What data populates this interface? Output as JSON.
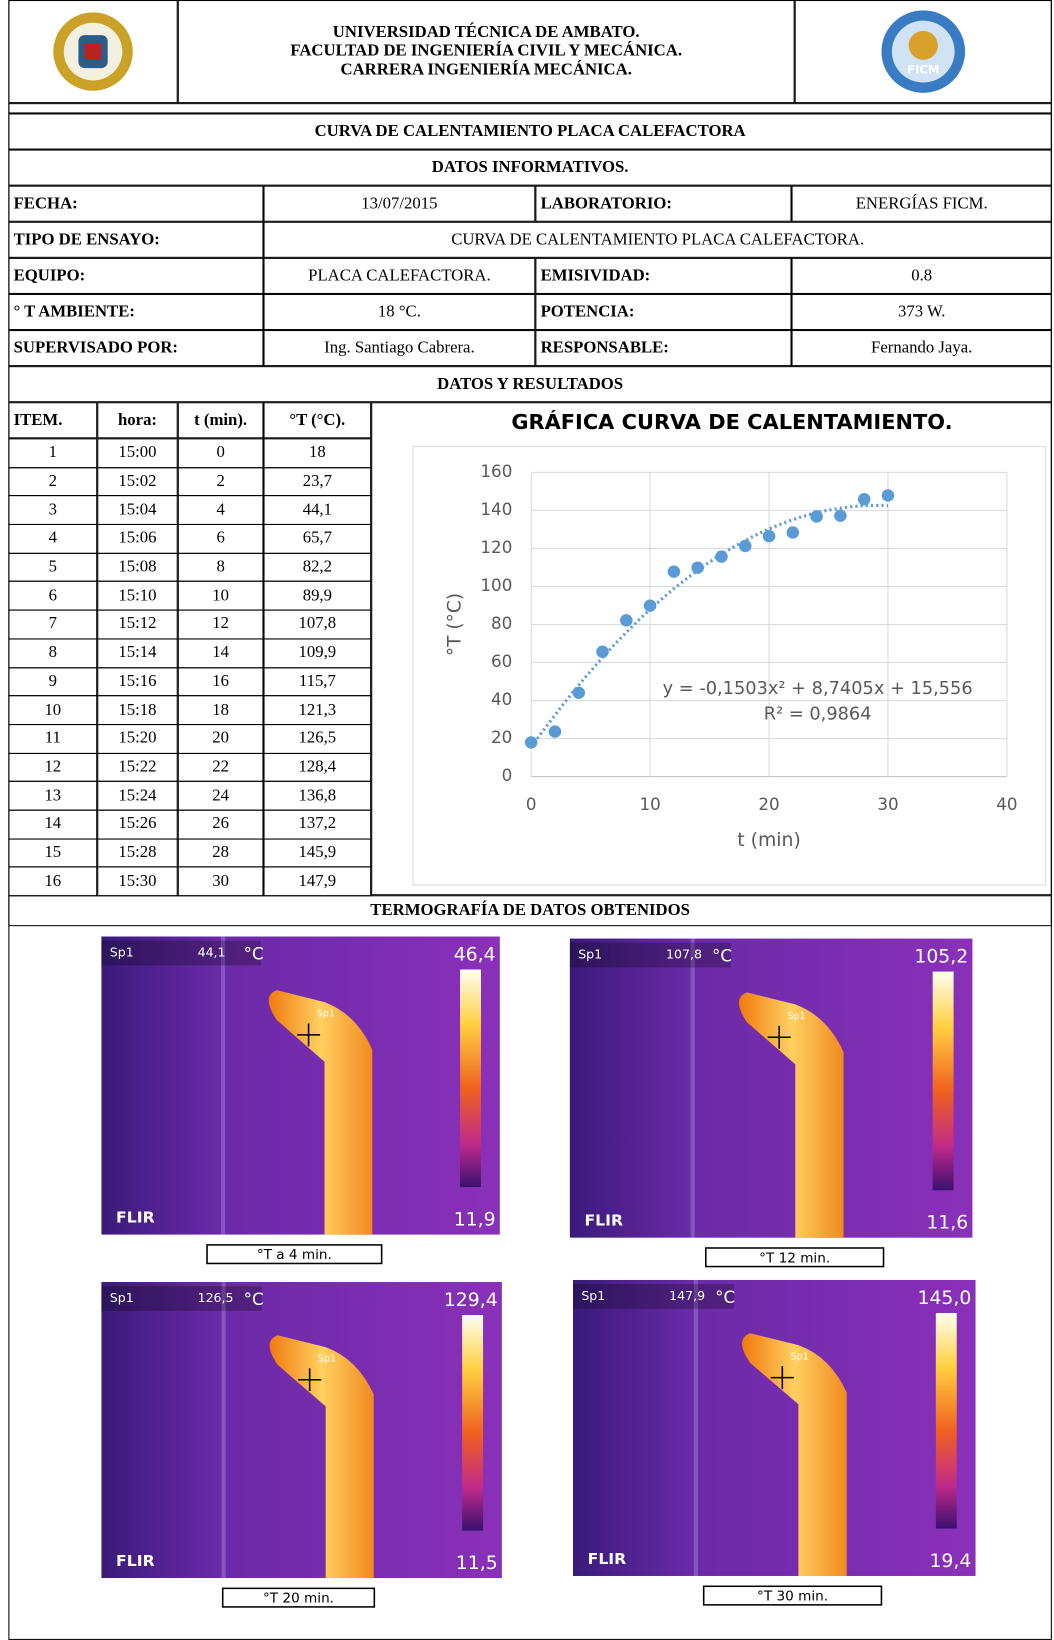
{
  "header": {
    "lines": [
      "UNIVERSIDAD TÉCNICA DE AMBATO.",
      "FACULTAD DE INGENIERÍA CIVIL Y MECÁNICA.",
      "CARRERA INGENIERÍA MECÁNICA."
    ],
    "logo_right": "FICM"
  },
  "title": "CURVA DE CALENTAMIENTO PLACA CALEFACTORA",
  "info": {
    "heading": "DATOS INFORMATIVOS.",
    "rows": [
      [
        "FECHA:",
        "13/07/2015",
        "LABORATORIO:",
        "ENERGÍAS FICM."
      ],
      [
        "TIPO DE ENSAYO:",
        "CURVA DE CALENTAMIENTO PLACA CALEFACTORA."
      ],
      [
        "EQUIPO:",
        "PLACA CALEFACTORA.",
        "EMISIVIDAD:",
        "0.8"
      ],
      [
        "° T AMBIENTE:",
        "18 °C.",
        "POTENCIA:",
        "373 W."
      ],
      [
        "SUPERVISADO POR:",
        "Ing.  Santiago Cabrera.",
        "RESPONSABLE:",
        "Fernando Jaya."
      ]
    ]
  },
  "results": {
    "heading": "DATOS Y RESULTADOS",
    "columns": [
      "ITEM.",
      "hora:",
      "t (min).",
      "°T (°C)."
    ],
    "rows": [
      [
        "1",
        "15:00",
        "0",
        "18"
      ],
      [
        "2",
        "15:02",
        "2",
        "23,7"
      ],
      [
        "3",
        "15:04",
        "4",
        "44,1"
      ],
      [
        "4",
        "15:06",
        "6",
        "65,7"
      ],
      [
        "5",
        "15:08",
        "8",
        "82,2"
      ],
      [
        "6",
        "15:10",
        "10",
        "89,9"
      ],
      [
        "7",
        "15:12",
        "12",
        "107,8"
      ],
      [
        "8",
        "15:14",
        "14",
        "109,9"
      ],
      [
        "9",
        "15:16",
        "16",
        "115,7"
      ],
      [
        "10",
        "15:18",
        "18",
        "121,3"
      ],
      [
        "11",
        "15:20",
        "20",
        "126,5"
      ],
      [
        "12",
        "15:22",
        "22",
        "128,4"
      ],
      [
        "13",
        "15:24",
        "24",
        "136,8"
      ],
      [
        "14",
        "15:26",
        "26",
        "137,2"
      ],
      [
        "15",
        "15:28",
        "28",
        "145,9"
      ],
      [
        "16",
        "15:30",
        "30",
        "147,9"
      ]
    ]
  },
  "chart_data": {
    "type": "scatter",
    "title": "GRÁFICA CURVA DE CALENTAMIENTO.",
    "x_label": "t (min)",
    "y_label": "°T (°C)",
    "x": [
      0,
      2,
      4,
      6,
      8,
      10,
      12,
      14,
      16,
      18,
      20,
      22,
      24,
      26,
      28,
      30
    ],
    "series": [
      {
        "name": "°T (°C)",
        "color": "#5b9bd5",
        "values": [
          18,
          23.7,
          44.1,
          65.7,
          82.2,
          89.9,
          107.8,
          109.9,
          115.7,
          121.3,
          126.5,
          128.4,
          136.8,
          137.2,
          145.9,
          147.9
        ]
      }
    ],
    "trendline": {
      "coefficients": [
        -0.1503,
        8.7405,
        15.556
      ],
      "equation": "y = -0,1503x² + 8,7405x + 15,556",
      "r2": "R² = 0,9864"
    },
    "xlim": [
      0,
      40
    ],
    "xticks": [
      0,
      10,
      20,
      30,
      40
    ],
    "ylim": [
      0,
      160
    ],
    "yticks": [
      0,
      20,
      40,
      60,
      80,
      100,
      120,
      140,
      160
    ],
    "grid": true,
    "legend": false
  },
  "thermography": {
    "heading": "TERMOGRAFÍA DE DATOS OBTENIDOS",
    "images": [
      {
        "spot": "Sp1",
        "reading": "44,1",
        "unit": "°C",
        "max": "46,4",
        "min": "11,9",
        "brand": "FLIR",
        "caption": "°T  a 4 min."
      },
      {
        "spot": "Sp1",
        "reading": "107,8",
        "unit": "°C",
        "max": "105,2",
        "min": "11,6",
        "brand": "FLIR",
        "caption": "°T 12 min."
      },
      {
        "spot": "Sp1",
        "reading": "126,5",
        "unit": "°C",
        "max": "129,4",
        "min": "11,5",
        "brand": "FLIR",
        "caption": "°T 20 min."
      },
      {
        "spot": "Sp1",
        "reading": "147,9",
        "unit": "°C",
        "max": "145,0",
        "min": "19,4",
        "brand": "FLIR",
        "caption": "°T 30 min."
      }
    ]
  }
}
